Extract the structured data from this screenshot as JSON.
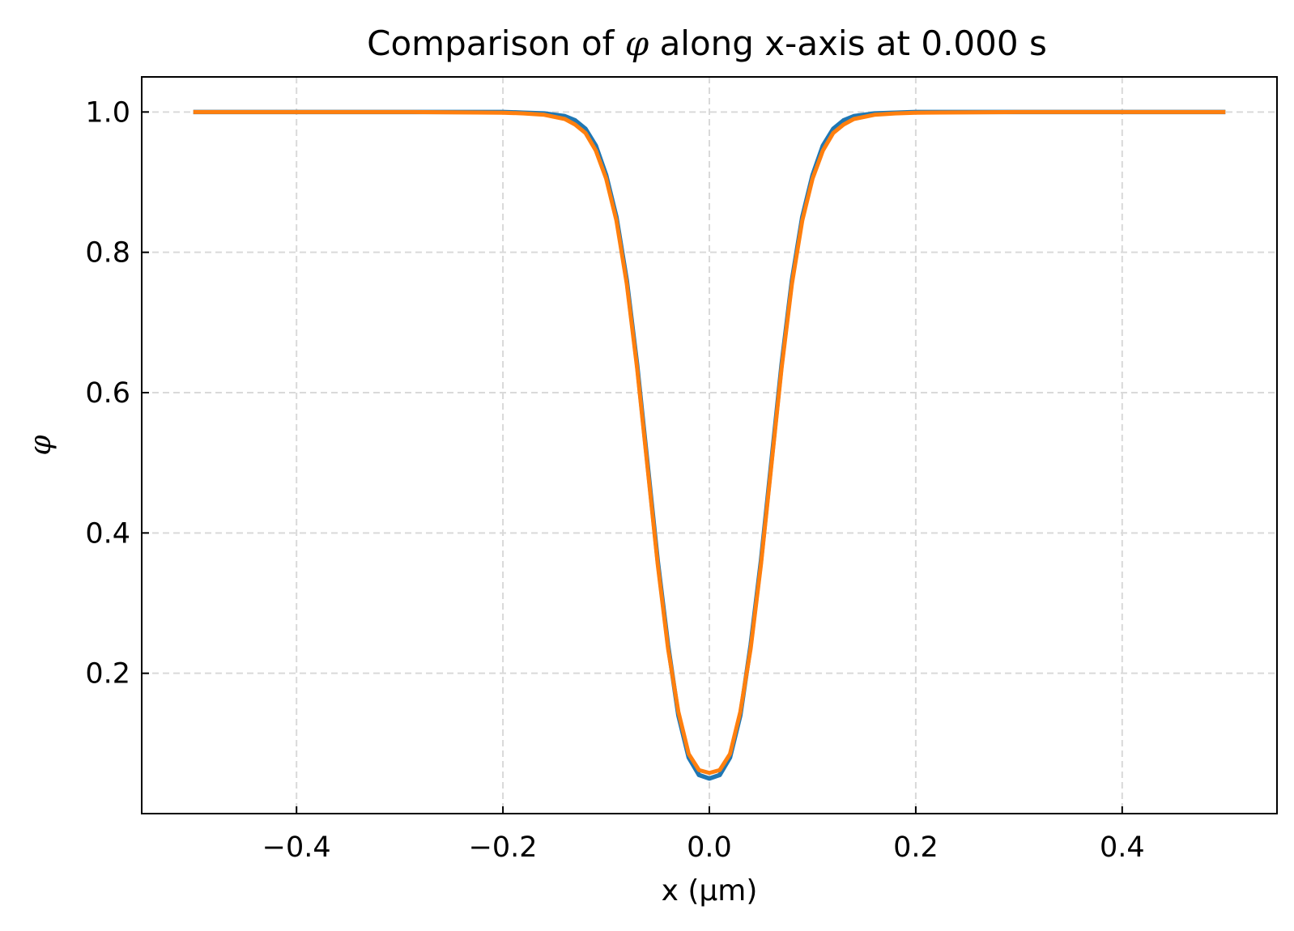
{
  "chart_data": {
    "type": "line",
    "title_prefix": "Comparison of ",
    "title_symbol": "φ",
    "title_suffix": " along x-axis at 0.000 s",
    "xlabel": "x (μm)",
    "ylabel": "φ",
    "xlim": [
      -0.55,
      0.55
    ],
    "ylim": [
      0.0,
      1.05
    ],
    "xticks": [
      -0.4,
      -0.2,
      0.0,
      0.2,
      0.4
    ],
    "xtick_labels": [
      "−0.4",
      "−0.2",
      "0.0",
      "0.2",
      "0.4"
    ],
    "yticks": [
      0.2,
      0.4,
      0.6,
      0.8,
      1.0
    ],
    "ytick_labels": [
      "0.2",
      "0.4",
      "0.6",
      "0.8",
      "1.0"
    ],
    "grid": true,
    "grid_style": "dashed",
    "legend": "none",
    "x": [
      -0.5,
      -0.4,
      -0.3,
      -0.2,
      -0.18,
      -0.16,
      -0.14,
      -0.13,
      -0.12,
      -0.11,
      -0.1,
      -0.09,
      -0.08,
      -0.07,
      -0.06,
      -0.05,
      -0.04,
      -0.03,
      -0.02,
      -0.01,
      0.0,
      0.01,
      0.02,
      0.03,
      0.04,
      0.05,
      0.06,
      0.07,
      0.08,
      0.09,
      0.1,
      0.11,
      0.12,
      0.13,
      0.14,
      0.16,
      0.18,
      0.2,
      0.3,
      0.4,
      0.5
    ],
    "series": [
      {
        "color": "#1f77b4",
        "values": [
          1.0,
          1.0,
          1.0,
          1.0,
          0.999,
          0.998,
          0.994,
          0.988,
          0.976,
          0.952,
          0.91,
          0.85,
          0.76,
          0.64,
          0.5,
          0.36,
          0.24,
          0.14,
          0.08,
          0.055,
          0.05,
          0.055,
          0.08,
          0.14,
          0.24,
          0.36,
          0.5,
          0.64,
          0.76,
          0.85,
          0.91,
          0.952,
          0.976,
          0.988,
          0.994,
          0.998,
          0.999,
          1.0,
          1.0,
          1.0,
          1.0
        ]
      },
      {
        "color": "#ff7f0e",
        "values": [
          1.0,
          1.0,
          1.0,
          0.999,
          0.998,
          0.996,
          0.99,
          0.982,
          0.97,
          0.945,
          0.905,
          0.845,
          0.755,
          0.635,
          0.495,
          0.355,
          0.235,
          0.145,
          0.085,
          0.062,
          0.058,
          0.062,
          0.085,
          0.145,
          0.235,
          0.355,
          0.495,
          0.635,
          0.755,
          0.845,
          0.905,
          0.945,
          0.97,
          0.982,
          0.99,
          0.996,
          0.998,
          0.999,
          1.0,
          1.0,
          1.0
        ]
      }
    ]
  }
}
